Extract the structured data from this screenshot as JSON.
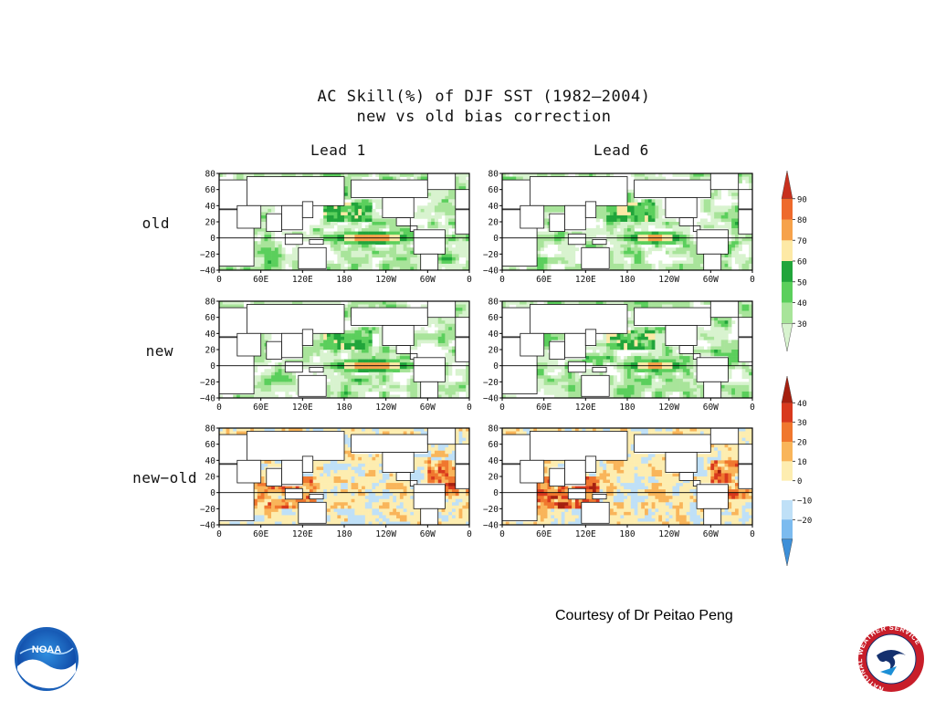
{
  "page": {
    "title_line1": "AC Skill(%) of DJF SST (1982–2004)",
    "title_line2": "new vs old bias correction",
    "courtesy": "Courtesy of Dr Peitao Peng"
  },
  "chart_data": {
    "type": "heatmap",
    "columns": [
      "Lead 1",
      "Lead 6"
    ],
    "rows": [
      "old",
      "new",
      "new−old"
    ],
    "x_ticks": [
      "0",
      "60E",
      "120E",
      "180",
      "120W",
      "60W",
      "0"
    ],
    "y_ticks": [
      "80",
      "60",
      "40",
      "20",
      "0",
      "−20",
      "−40"
    ],
    "xlim": [
      0,
      360
    ],
    "ylim": [
      -40,
      80
    ],
    "skill_colorbar": {
      "labels": [
        "90",
        "80",
        "70",
        "60",
        "50",
        "40",
        "30"
      ],
      "colors": [
        "#c8301e",
        "#ee6a2c",
        "#f6a24b",
        "#fde9a6",
        "#21a53b",
        "#5bcf5c",
        "#a8e49a",
        "#d8f3cf"
      ]
    },
    "diff_colorbar": {
      "labels": [
        "40",
        "30",
        "20",
        "10",
        "0",
        "−10",
        "−20"
      ],
      "colors": [
        "#a5200f",
        "#d8391d",
        "#f0772e",
        "#f9b55a",
        "#fdedb0",
        "#ffffff",
        "#bfe0f7",
        "#7cbbef",
        "#3d8fd8"
      ]
    },
    "panels": [
      {
        "row": "old",
        "column": "Lead 1",
        "kind": "skill",
        "enso_max": 90,
        "enso_width": 95
      },
      {
        "row": "old",
        "column": "Lead 6",
        "kind": "skill",
        "enso_max": 85,
        "enso_width": 75
      },
      {
        "row": "new",
        "column": "Lead 1",
        "kind": "skill",
        "enso_max": 90,
        "enso_width": 100
      },
      {
        "row": "new",
        "column": "Lead 6",
        "kind": "skill",
        "enso_max": 85,
        "enso_width": 75
      },
      {
        "row": "new−old",
        "column": "Lead 1",
        "kind": "diff",
        "max_diff": 30
      },
      {
        "row": "new−old",
        "column": "Lead 6",
        "kind": "diff",
        "max_diff": 40
      }
    ]
  },
  "logos": {
    "noaa_text": "NOAA",
    "nws_text": "NATIONAL WEATHER SERVICE"
  }
}
